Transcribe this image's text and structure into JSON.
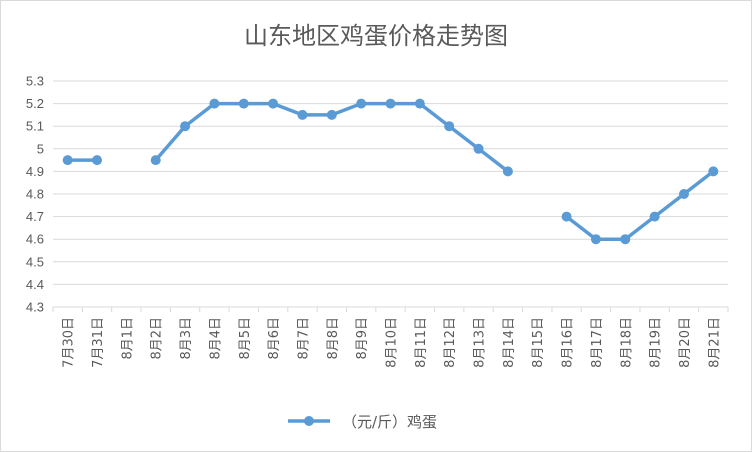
{
  "chart_data": {
    "type": "line",
    "title": "山东地区鸡蛋价格走势图",
    "categories": [
      "7月30日",
      "7月31日",
      "8月1日",
      "8月2日",
      "8月3日",
      "8月4日",
      "8月5日",
      "8月6日",
      "8月7日",
      "8月8日",
      "8月9日",
      "8月10日",
      "8月11日",
      "8月12日",
      "8月13日",
      "8月14日",
      "8月15日",
      "8月16日",
      "8月17日",
      "8月18日",
      "8月19日",
      "8月20日",
      "8月21日"
    ],
    "series": [
      {
        "name": "（元/斤）鸡蛋",
        "values": [
          4.95,
          4.95,
          null,
          4.95,
          5.1,
          5.2,
          5.2,
          5.2,
          5.15,
          5.15,
          5.2,
          5.2,
          5.2,
          5.1,
          5.0,
          4.9,
          null,
          4.7,
          4.6,
          4.6,
          4.7,
          4.8,
          4.9
        ],
        "color": "#5b9bd5"
      }
    ],
    "ylim": [
      4.3,
      5.3
    ],
    "yticks": [
      "4.3",
      "4.4",
      "4.5",
      "4.6",
      "4.7",
      "4.8",
      "4.9",
      "5",
      "5.1",
      "5.2",
      "5.3"
    ],
    "grid": true,
    "legend_position": "bottom",
    "xlabel": "",
    "ylabel": ""
  }
}
